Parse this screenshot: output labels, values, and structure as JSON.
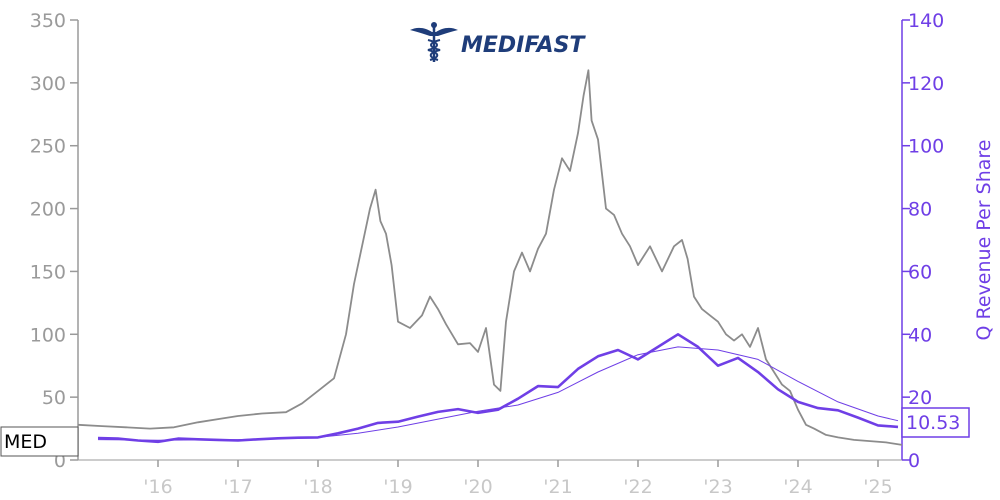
{
  "logo": {
    "text": "MEDIFAST",
    "mark": "caduceus-icon"
  },
  "chart_data": {
    "type": "line",
    "title": "",
    "xlabel": "",
    "ylabel_left": "",
    "ylabel_right": "Q Revenue Per Share",
    "ylim_left": [
      0,
      350
    ],
    "ylim_right": [
      0,
      140
    ],
    "xlim": [
      2015.0,
      2025.3
    ],
    "left_ticks": [
      0,
      50,
      100,
      150,
      200,
      250,
      300,
      350
    ],
    "left_tick_labels": [
      "0",
      "50",
      "100",
      "150",
      "200",
      "250",
      "300",
      "350"
    ],
    "right_ticks": [
      0,
      20,
      40,
      60,
      80,
      100,
      120,
      140
    ],
    "right_tick_labels": [
      "0",
      "20",
      "40",
      "60",
      "80",
      "100",
      "120",
      "140"
    ],
    "x_ticks": [
      2016,
      2017,
      2018,
      2019,
      2020,
      2021,
      2022,
      2023,
      2024,
      2025
    ],
    "x_tick_labels": [
      "'16",
      "'17",
      "'18",
      "'19",
      "'20",
      "'21",
      "'22",
      "'23",
      "'24",
      "'25"
    ],
    "ticker_label": "MED",
    "last_value_label": "10.53",
    "colors": {
      "price": "#8c8c8c",
      "revenue": "#6f3fe6",
      "trend": "#6f3fe6",
      "axis_left": "#9a9a9a",
      "axis_right": "#6f3fe6"
    },
    "series": [
      {
        "axis": "left",
        "color": "#8c8c8c",
        "x": [
          2015.0,
          2015.3,
          2015.6,
          2015.9,
          2016.2,
          2016.5,
          2016.8,
          2017.0,
          2017.3,
          2017.6,
          2017.8,
          2018.0,
          2018.2,
          2018.35,
          2018.45,
          2018.55,
          2018.65,
          2018.72,
          2018.78,
          2018.85,
          2018.92,
          2019.0,
          2019.15,
          2019.3,
          2019.4,
          2019.5,
          2019.6,
          2019.75,
          2019.9,
          2020.0,
          2020.1,
          2020.2,
          2020.28,
          2020.35,
          2020.45,
          2020.55,
          2020.65,
          2020.75,
          2020.85,
          2020.95,
          2021.05,
          2021.15,
          2021.25,
          2021.32,
          2021.38,
          2021.42,
          2021.5,
          2021.6,
          2021.7,
          2021.8,
          2021.9,
          2022.0,
          2022.15,
          2022.3,
          2022.45,
          2022.55,
          2022.62,
          2022.7,
          2022.8,
          2022.9,
          2023.0,
          2023.1,
          2023.2,
          2023.3,
          2023.4,
          2023.5,
          2023.6,
          2023.7,
          2023.8,
          2023.9,
          2024.0,
          2024.1,
          2024.2,
          2024.35,
          2024.5,
          2024.7,
          2024.9,
          2025.1,
          2025.3
        ],
        "values": [
          28,
          27,
          26,
          25,
          26,
          30,
          33,
          35,
          37,
          38,
          45,
          55,
          65,
          100,
          140,
          170,
          200,
          215,
          190,
          180,
          155,
          110,
          105,
          115,
          130,
          120,
          108,
          92,
          93,
          86,
          105,
          60,
          55,
          110,
          150,
          165,
          150,
          168,
          180,
          215,
          240,
          230,
          260,
          290,
          310,
          270,
          255,
          200,
          195,
          180,
          170,
          155,
          170,
          150,
          170,
          175,
          160,
          130,
          120,
          115,
          110,
          100,
          95,
          100,
          90,
          105,
          80,
          70,
          60,
          55,
          40,
          28,
          25,
          20,
          18,
          16,
          15,
          14,
          12
        ]
      },
      {
        "axis": "right",
        "color": "#6f3fe6",
        "x": [
          2015.25,
          2015.5,
          2015.75,
          2016.0,
          2016.25,
          2016.5,
          2016.75,
          2017.0,
          2017.25,
          2017.5,
          2017.75,
          2018.0,
          2018.25,
          2018.5,
          2018.75,
          2019.0,
          2019.25,
          2019.5,
          2019.75,
          2020.0,
          2020.25,
          2020.5,
          2020.75,
          2021.0,
          2021.25,
          2021.5,
          2021.75,
          2022.0,
          2022.25,
          2022.5,
          2022.75,
          2023.0,
          2023.25,
          2023.5,
          2023.75,
          2024.0,
          2024.25,
          2024.5,
          2024.75,
          2025.0,
          2025.25
        ],
        "values": [
          7,
          6.8,
          6.2,
          5.8,
          6.8,
          6.6,
          6.4,
          6.2,
          6.6,
          6.9,
          7.1,
          7.2,
          8.5,
          10,
          11.8,
          12.2,
          13.8,
          15.3,
          16.2,
          15,
          16,
          19.5,
          23.5,
          23.2,
          29,
          33,
          35,
          32,
          36,
          40,
          36,
          30,
          32.5,
          28,
          22.5,
          18.5,
          16.5,
          15.8,
          13.5,
          11,
          10.53
        ]
      },
      {
        "axis": "right",
        "color": "#6f3fe6",
        "x": [
          2015.25,
          2016.0,
          2016.5,
          2017.0,
          2017.5,
          2018.0,
          2018.5,
          2019.0,
          2019.5,
          2020.0,
          2020.5,
          2021.0,
          2021.5,
          2022.0,
          2022.5,
          2023.0,
          2023.5,
          2024.0,
          2024.5,
          2025.0,
          2025.25
        ],
        "values": [
          6.5,
          6.3,
          6.4,
          6.5,
          6.8,
          7.2,
          8.5,
          10.5,
          13,
          15.5,
          17.5,
          21.5,
          28,
          33.5,
          36,
          35,
          32,
          25,
          18.5,
          14,
          12.5
        ]
      }
    ]
  }
}
